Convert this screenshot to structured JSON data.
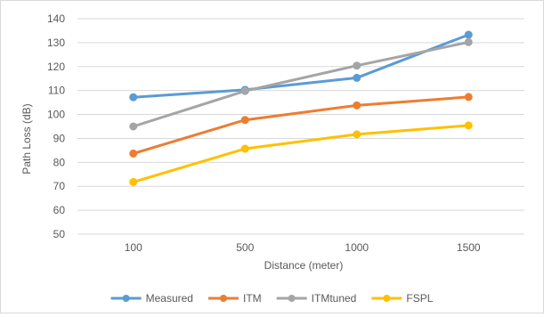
{
  "chart_data": {
    "type": "line",
    "title": "",
    "xlabel": "Distance (meter)",
    "ylabel": "Path Loss (dB)",
    "categories": [
      "100",
      "500",
      "1000",
      "1500"
    ],
    "ylim": [
      50,
      140
    ],
    "yticks": [
      50,
      60,
      70,
      80,
      90,
      100,
      110,
      120,
      130,
      140
    ],
    "grid": true,
    "legend_position": "bottom",
    "series": [
      {
        "name": "Measured",
        "color": "#5b9bd5",
        "values": [
          107.2,
          110.3,
          115.3,
          133.3
        ]
      },
      {
        "name": "ITM",
        "color": "#ed7d31",
        "values": [
          83.7,
          97.7,
          103.8,
          107.3
        ]
      },
      {
        "name": "ITMtuned",
        "color": "#a5a5a5",
        "values": [
          95.0,
          109.8,
          120.4,
          130.2
        ]
      },
      {
        "name": "FSPL",
        "color": "#ffc000",
        "values": [
          71.8,
          85.7,
          91.7,
          95.4
        ]
      }
    ]
  }
}
